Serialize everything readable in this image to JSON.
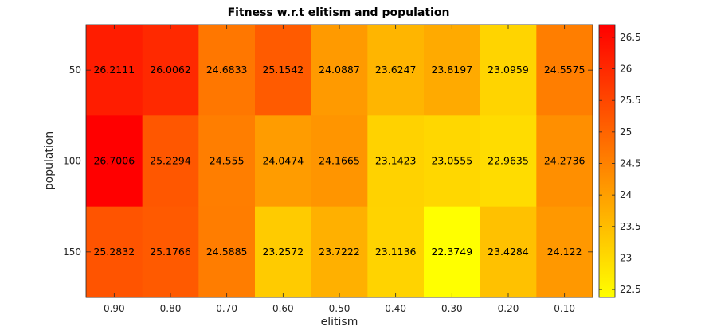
{
  "chart_data": {
    "type": "heatmap",
    "title": "Fitness w.r.t elitism and population",
    "xlabel": "elitism",
    "ylabel": "population",
    "x": [
      "0.90",
      "0.80",
      "0.70",
      "0.60",
      "0.50",
      "0.40",
      "0.30",
      "0.20",
      "0.10"
    ],
    "y": [
      "50",
      "100",
      "150"
    ],
    "values": [
      [
        "26.2111",
        "26.0062",
        "24.6833",
        "25.1542",
        "24.0887",
        "23.6247",
        "23.8197",
        "23.0959",
        "24.5575"
      ],
      [
        "26.7006",
        "25.2294",
        "24.555",
        "24.0474",
        "24.1665",
        "23.1423",
        "23.0555",
        "22.9635",
        "24.2736"
      ],
      [
        "25.2832",
        "25.1766",
        "24.5885",
        "23.2572",
        "23.7222",
        "23.1136",
        "22.3749",
        "23.4284",
        "24.122"
      ]
    ],
    "colorbar": {
      "ticks": [
        "22.5",
        "23",
        "23.5",
        "24",
        "24.5",
        "25",
        "25.5",
        "26",
        "26.5"
      ],
      "range": [
        22.3749,
        26.7006
      ],
      "colormap": "autumn (reversed)",
      "low_color": "#ffff00",
      "high_color": "#ff0000"
    }
  }
}
